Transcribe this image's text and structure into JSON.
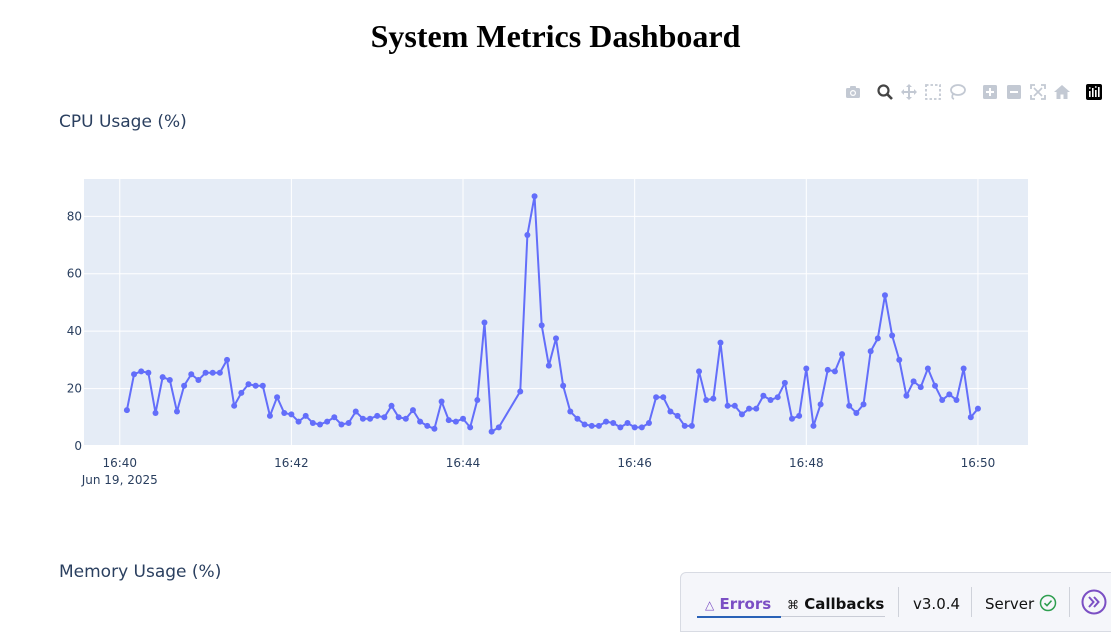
{
  "page": {
    "title": "System Metrics Dashboard"
  },
  "cpu_chart": {
    "title": "CPU Usage (%)"
  },
  "memory_chart": {
    "title": "Memory Usage (%)"
  },
  "modebar": {
    "items": [
      "camera-icon",
      "zoom-icon",
      "pan-icon",
      "box-select-icon",
      "lasso-icon",
      "zoom-in-icon",
      "zoom-out-icon",
      "autoscale-icon",
      "reset-axes-icon",
      "plotly-logo"
    ]
  },
  "debug_bar": {
    "errors_label": "Errors",
    "callbacks_label": "Callbacks",
    "version": "v3.0.4",
    "server_label": "Server",
    "accent_color": "#7b4fc4"
  },
  "chart_data": {
    "type": "line",
    "title": "CPU Usage (%)",
    "xlabel": "",
    "ylabel": "",
    "x_date": "Jun 19, 2025",
    "x_ticks": [
      "16:40",
      "16:42",
      "16:44",
      "16:46",
      "16:48",
      "16:50"
    ],
    "y_ticks": [
      0,
      20,
      40,
      60,
      80
    ],
    "ylim": [
      0,
      93
    ],
    "xlim": [
      "16:39:35",
      "16:50:35"
    ],
    "grid": true,
    "plot_bg": "#e5ecf6",
    "line_color": "#636efa",
    "series": [
      {
        "x": [
          "16:40:05",
          "16:40:10",
          "16:40:15",
          "16:40:20",
          "16:40:25",
          "16:40:30",
          "16:40:35",
          "16:40:40",
          "16:40:45",
          "16:40:50",
          "16:40:55",
          "16:41:00",
          "16:41:05",
          "16:41:10",
          "16:41:15",
          "16:41:20",
          "16:41:25",
          "16:41:30",
          "16:41:35",
          "16:41:40",
          "16:41:45",
          "16:41:50",
          "16:41:55",
          "16:42:00",
          "16:42:05",
          "16:42:10",
          "16:42:15",
          "16:42:20",
          "16:42:25",
          "16:42:30",
          "16:42:35",
          "16:42:40",
          "16:42:45",
          "16:42:50",
          "16:42:55",
          "16:43:00",
          "16:43:05",
          "16:43:10",
          "16:43:15",
          "16:43:20",
          "16:43:25",
          "16:43:30",
          "16:43:35",
          "16:43:40",
          "16:43:45",
          "16:43:50",
          "16:43:55",
          "16:44:00",
          "16:44:05",
          "16:44:10",
          "16:44:15",
          "16:44:20",
          "16:44:25",
          "16:44:40",
          "16:44:45",
          "16:44:50",
          "16:44:55",
          "16:45:00",
          "16:45:05",
          "16:45:10",
          "16:45:15",
          "16:45:20",
          "16:45:25",
          "16:45:30",
          "16:45:35",
          "16:45:40",
          "16:45:45",
          "16:45:50",
          "16:45:55",
          "16:46:00",
          "16:46:05",
          "16:46:10",
          "16:46:15",
          "16:46:20",
          "16:46:25",
          "16:46:30",
          "16:46:35",
          "16:46:40",
          "16:46:45",
          "16:46:50",
          "16:46:55",
          "16:47:00",
          "16:47:05",
          "16:47:10",
          "16:47:15",
          "16:47:20",
          "16:47:25",
          "16:47:30",
          "16:47:35",
          "16:47:40",
          "16:47:45",
          "16:47:50",
          "16:47:55",
          "16:48:00",
          "16:48:05",
          "16:48:10",
          "16:48:15",
          "16:48:20",
          "16:48:25",
          "16:48:30",
          "16:48:35",
          "16:48:40",
          "16:48:45",
          "16:48:50",
          "16:48:55",
          "16:49:00",
          "16:49:05",
          "16:49:10",
          "16:49:15",
          "16:49:20",
          "16:49:25",
          "16:49:30",
          "16:49:35",
          "16:49:40",
          "16:49:45",
          "16:49:50",
          "16:49:55",
          "16:50:00"
        ],
        "values": [
          12.5,
          25,
          26,
          25.5,
          11.5,
          24,
          23,
          12,
          21,
          25,
          23,
          25.5,
          25.5,
          25.5,
          30,
          14,
          18.5,
          21.5,
          21,
          21,
          10.5,
          17,
          11.5,
          11,
          8.5,
          10.5,
          8,
          7.5,
          8.5,
          10,
          7.5,
          8,
          12,
          9.5,
          9.5,
          10.5,
          10,
          14,
          10,
          9.5,
          12.5,
          8.5,
          7,
          6,
          15.5,
          9,
          8.5,
          9.5,
          6.5,
          16,
          43,
          5,
          6.5,
          19,
          73.5,
          87,
          42,
          28,
          37.5,
          21,
          12,
          9.5,
          7.5,
          7,
          7,
          8.5,
          8,
          6.5,
          8,
          6.5,
          6.5,
          8,
          17,
          17,
          12,
          10.5,
          7,
          7,
          26,
          16,
          16.5,
          36,
          14,
          14,
          11,
          13,
          13,
          17.5,
          16,
          17,
          22,
          9.5,
          10.5,
          27,
          7,
          14.5,
          26.5,
          26,
          32,
          14,
          11.5,
          14.5,
          33,
          37.5,
          52.5,
          38.5,
          30,
          17.5,
          22.5,
          20.5,
          27,
          21,
          16,
          18,
          16,
          27,
          10,
          13
        ]
      }
    ]
  }
}
